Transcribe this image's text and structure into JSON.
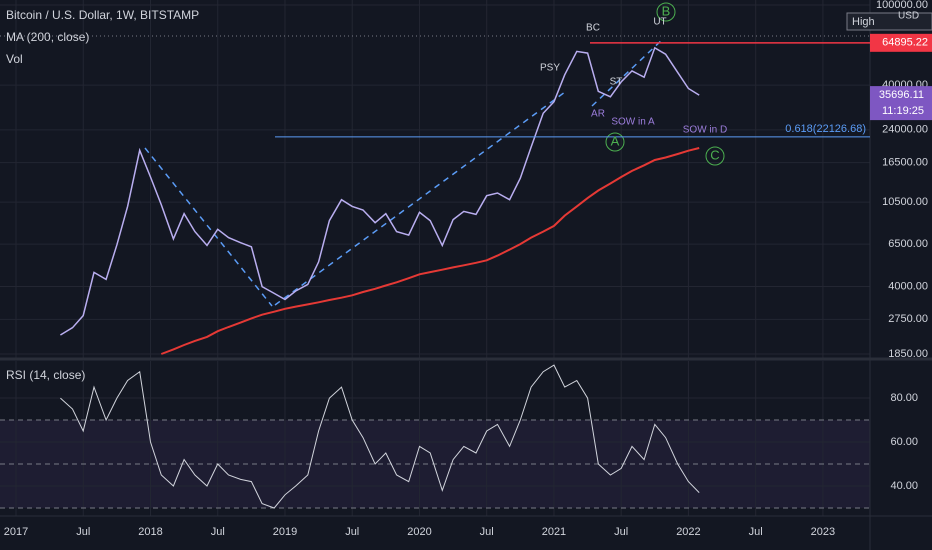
{
  "chart_data": [
    {
      "type": "line",
      "title": "Bitcoin / U.S. Dollar, 1W, BITSTAMP",
      "indicator_labels": [
        "Vol"
      ],
      "x": [
        2017.33,
        2017.42,
        2017.5,
        2017.58,
        2017.67,
        2017.75,
        2017.83,
        2017.92,
        2018.0,
        2018.08,
        2018.17,
        2018.25,
        2018.33,
        2018.42,
        2018.5,
        2018.58,
        2018.67,
        2018.75,
        2018.83,
        2018.92,
        2019.0,
        2019.08,
        2019.17,
        2019.25,
        2019.33,
        2019.42,
        2019.5,
        2019.58,
        2019.67,
        2019.75,
        2019.83,
        2019.92,
        2020.0,
        2020.08,
        2020.17,
        2020.25,
        2020.33,
        2020.42,
        2020.5,
        2020.58,
        2020.67,
        2020.75,
        2020.83,
        2020.92,
        2021.0,
        2021.08,
        2021.17,
        2021.25,
        2021.33,
        2021.42,
        2021.5,
        2021.58,
        2021.67,
        2021.75,
        2021.83,
        2021.92,
        2022.0,
        2022.08
      ],
      "series": [
        {
          "color": "#b9aef0",
          "values": [
            2300,
            2500,
            2870,
            4700,
            4340,
            6450,
            10000,
            19000,
            14000,
            10200,
            6900,
            9200,
            7500,
            6400,
            7700,
            7000,
            6600,
            6300,
            4000,
            3700,
            3450,
            3800,
            4100,
            5300,
            8500,
            10800,
            10000,
            9600,
            8300,
            9200,
            7500,
            7200,
            9350,
            8500,
            6400,
            8600,
            9450,
            9130,
            11300,
            11650,
            10800,
            13800,
            19700,
            29000,
            33100,
            45000,
            58800,
            57700,
            37300,
            35000,
            41500,
            47100,
            43800,
            61300,
            57000,
            46300,
            38500,
            35696.11
          ]
        },
        {
          "name": "MA (200, close)",
          "color": "#e53935",
          "values": [
            null,
            null,
            null,
            null,
            null,
            null,
            null,
            null,
            null,
            1850,
            1950,
            2050,
            2150,
            2250,
            2400,
            2520,
            2650,
            2780,
            2900,
            3000,
            3100,
            3180,
            3260,
            3340,
            3430,
            3520,
            3620,
            3760,
            3900,
            4050,
            4200,
            4400,
            4600,
            4720,
            4850,
            4980,
            5100,
            5250,
            5400,
            5700,
            6100,
            6500,
            7000,
            7500,
            8000,
            9000,
            10000,
            11000,
            12000,
            13000,
            14000,
            15000,
            16000,
            17000,
            17500,
            18200,
            18900,
            19500
          ]
        }
      ],
      "log_scale": true,
      "grid": true,
      "xlim": [
        2016.881,
        2023.35
      ],
      "xticks": [
        {
          "value": 2017,
          "label": "2017"
        },
        {
          "value": 2017.5,
          "label": "Jul"
        },
        {
          "value": 2018,
          "label": "2018"
        },
        {
          "value": 2018.5,
          "label": "Jul"
        },
        {
          "value": 2019,
          "label": "2019"
        },
        {
          "value": 2019.5,
          "label": "Jul"
        },
        {
          "value": 2020,
          "label": "2020"
        },
        {
          "value": 2020.5,
          "label": "Jul"
        },
        {
          "value": 2021,
          "label": "2021"
        },
        {
          "value": 2021.5,
          "label": "Jul"
        },
        {
          "value": 2022,
          "label": "2022"
        },
        {
          "value": 2022.5,
          "label": "Jul"
        },
        {
          "value": 2023,
          "label": "2023"
        }
      ],
      "ylim": [
        1850,
        100000
      ],
      "yticks": [
        {
          "value": 1850,
          "label": "1850.00"
        },
        {
          "value": 2750,
          "label": "2750.00"
        },
        {
          "value": 4000,
          "label": "4000.00"
        },
        {
          "value": 6500,
          "label": "6500.00"
        },
        {
          "value": 10500,
          "label": "10500.00"
        },
        {
          "value": 16500,
          "label": "16500.00"
        },
        {
          "value": 24000,
          "label": "24000.00"
        },
        {
          "value": 40000,
          "label": "40000.00"
        },
        {
          "value": 100000,
          "label": "100000.00"
        }
      ],
      "price_lines": [
        {
          "value": 64895.22,
          "label": "64895.22",
          "color": "#f23645"
        }
      ],
      "last_price": {
        "value": 35696.11,
        "label": "35696.11",
        "countdown": "11:19:25",
        "color": "#7e57c2"
      },
      "fib_level": {
        "value": 22126.68,
        "label": "0.618(22126.68)",
        "color": "#5b9cf6"
      },
      "high_label": "High",
      "currency": "USD",
      "annotations": [
        "PSY",
        "BC",
        "UT",
        "AR",
        "ST",
        "SOW in A",
        "SOW in D",
        "A",
        "B",
        "C"
      ]
    },
    {
      "type": "line",
      "title": "RSI (14, close)",
      "series": [
        {
          "color": "#d1d4dc",
          "values": [
            80,
            75,
            65,
            85,
            70,
            80,
            88,
            92,
            60,
            45,
            40,
            52,
            45,
            40,
            50,
            45,
            43,
            42,
            32,
            30,
            36,
            40,
            45,
            65,
            80,
            85,
            70,
            62,
            50,
            55,
            45,
            42,
            58,
            55,
            38,
            52,
            58,
            55,
            65,
            68,
            58,
            70,
            85,
            92,
            95,
            85,
            88,
            80,
            50,
            45,
            48,
            58,
            52,
            68,
            62,
            50,
            42,
            37
          ]
        }
      ],
      "ylim": [
        26.8,
        96.4
      ],
      "yticks": [
        {
          "value": 40,
          "label": "40.00"
        },
        {
          "value": 60,
          "label": "60.00"
        },
        {
          "value": 80,
          "label": "80.00"
        }
      ],
      "levels": [
        30,
        50,
        70
      ]
    }
  ]
}
